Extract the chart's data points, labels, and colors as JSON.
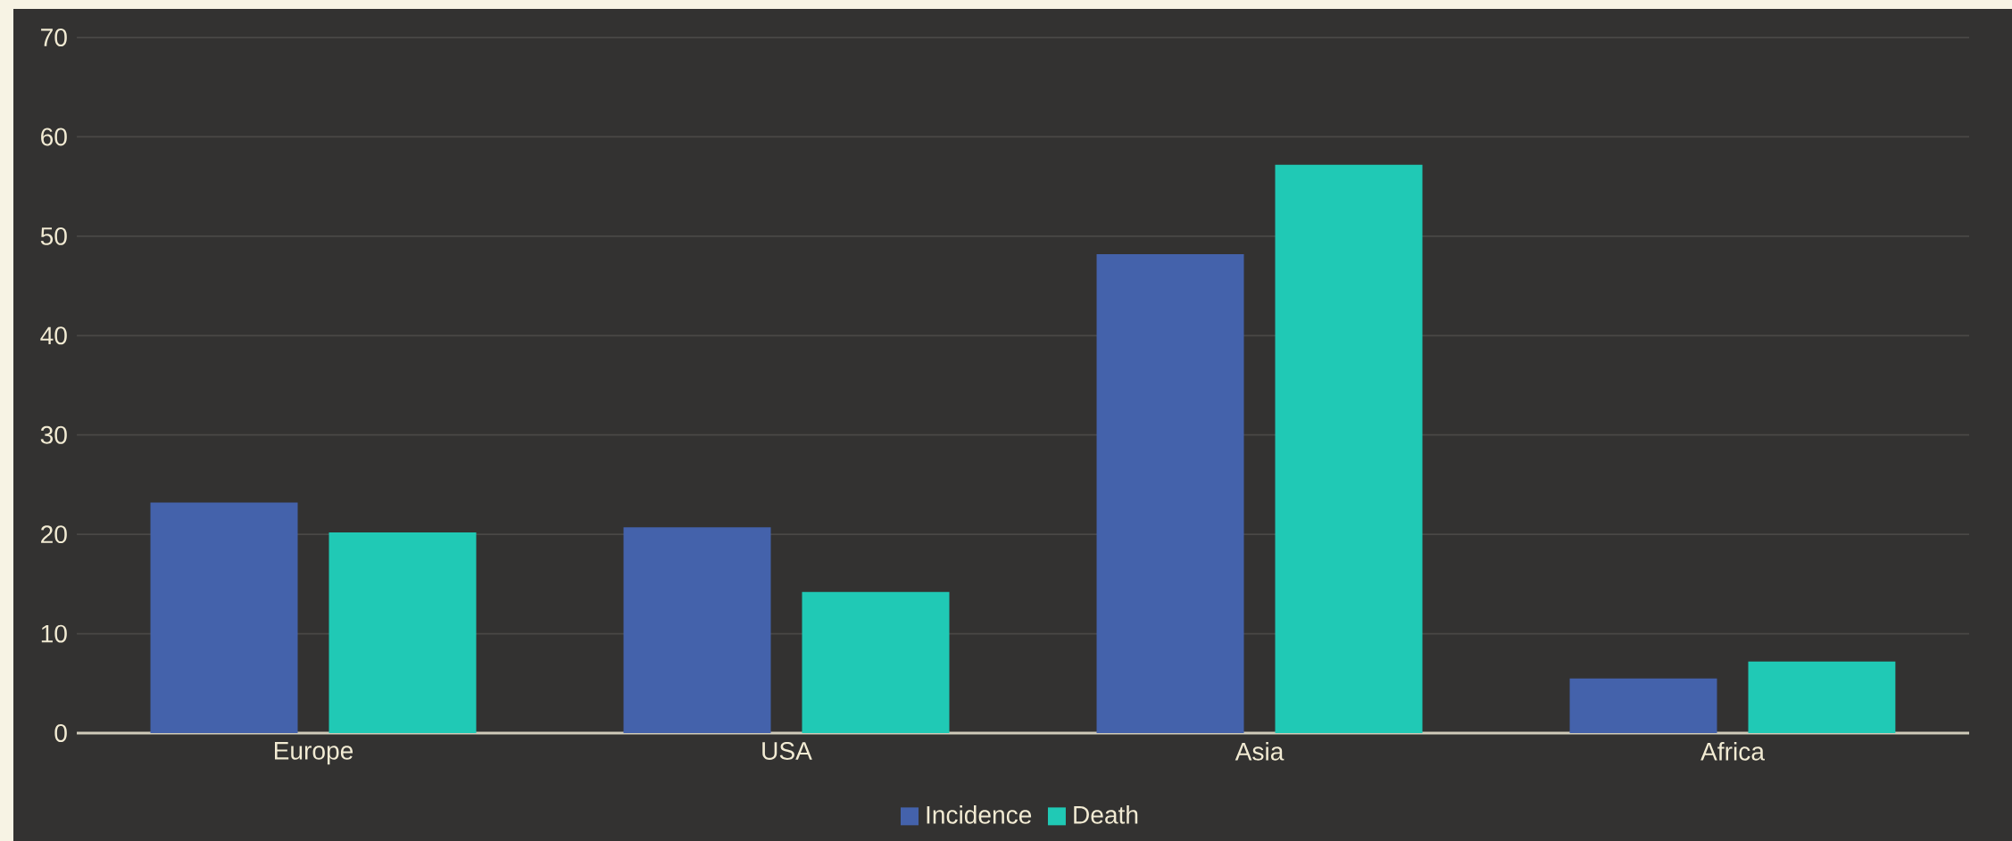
{
  "chart_data": {
    "type": "bar",
    "categories": [
      "Europe",
      "USA",
      "Asia",
      "Africa"
    ],
    "series": [
      {
        "name": "Incidence",
        "color": "#4462ab",
        "values": [
          23.2,
          20.7,
          48.2,
          5.5
        ]
      },
      {
        "name": "Death",
        "color": "#20c9b5",
        "values": [
          20.2,
          14.2,
          57.2,
          7.2
        ]
      }
    ],
    "ylim": [
      0,
      70
    ],
    "yticks": [
      0,
      10,
      20,
      30,
      40,
      50,
      60,
      70
    ],
    "grid": "y",
    "legend": "bottom"
  }
}
